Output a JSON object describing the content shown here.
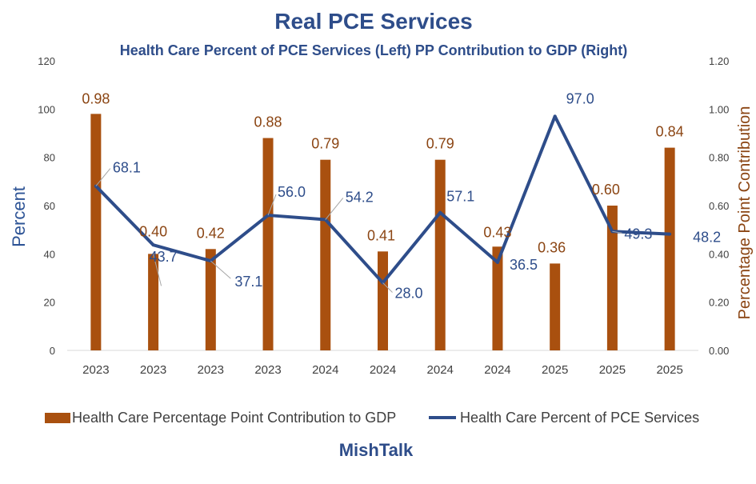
{
  "chart_data": {
    "type": "bar",
    "title": "Real PCE Services",
    "subtitle": "Health Care Percent of PCE Services (Left) PP Contribution to GDP (Right)",
    "ylabel": "Percent",
    "y2label": "Percentage Point Contribution",
    "ylim": [
      0,
      120
    ],
    "y2lim": [
      0,
      1.2
    ],
    "yticks": [
      "0",
      "20",
      "40",
      "60",
      "80",
      "100",
      "120"
    ],
    "y2ticks": [
      "0.00",
      "0.20",
      "0.40",
      "0.60",
      "0.80",
      "1.00",
      "1.20"
    ],
    "categories": [
      "2023",
      "2023",
      "2023",
      "2023",
      "2024",
      "2024",
      "2024",
      "2024",
      "2025",
      "2025",
      "2025"
    ],
    "grid": false,
    "legend_position": "bottom",
    "series": [
      {
        "name": "Health Care Percentage Point Contribution to GDP",
        "type": "bar",
        "axis": "right",
        "color": "#a9500f",
        "values": [
          0.98,
          0.4,
          0.42,
          0.88,
          0.79,
          0.41,
          0.79,
          0.43,
          0.36,
          0.6,
          0.84
        ],
        "labels": [
          "0.98",
          "0.40",
          "0.42",
          "0.88",
          "0.79",
          "0.41",
          "0.79",
          "0.43",
          "0.36",
          "0.60",
          "0.84"
        ]
      },
      {
        "name": "Health Care Percent of PCE Services",
        "type": "line",
        "axis": "left",
        "color": "#2e4d8a",
        "values": [
          68.1,
          43.7,
          37.1,
          56.0,
          54.2,
          28.0,
          57.1,
          36.5,
          97.0,
          49.3,
          48.2
        ],
        "labels": [
          "68.1",
          "43.7",
          "37.1",
          "56.0",
          "54.2",
          "28.0",
          "57.1",
          "36.5",
          "97.0",
          "49.3",
          "48.2"
        ]
      }
    ]
  },
  "footer": {
    "brand": "MishTalk"
  }
}
